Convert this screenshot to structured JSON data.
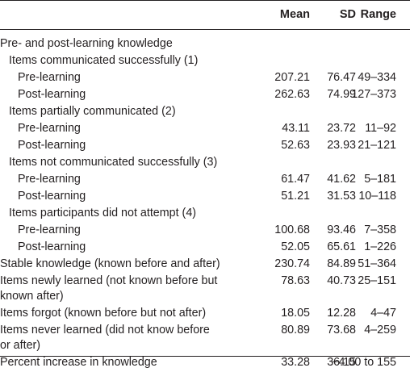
{
  "headers": {
    "mean": "Mean",
    "sd": "SD",
    "range": "Range"
  },
  "rows": [
    {
      "label": "Pre- and post-learning knowledge",
      "level": 0,
      "mean": "",
      "sd": "",
      "range": ""
    },
    {
      "label": "Items communicated successfully (1)",
      "level": 1,
      "mean": "",
      "sd": "",
      "range": ""
    },
    {
      "label": "Pre-learning",
      "level": 2,
      "mean": "207.21",
      "sd": "76.47",
      "range": "49–334"
    },
    {
      "label": "Post-learning",
      "level": 2,
      "mean": "262.63",
      "sd": "74.99",
      "range": "127–373"
    },
    {
      "label": "Items partially communicated (2)",
      "level": 1,
      "mean": "",
      "sd": "",
      "range": ""
    },
    {
      "label": "Pre-learning",
      "level": 2,
      "mean": "43.11",
      "sd": "23.72",
      "range": "11–92"
    },
    {
      "label": "Post-learning",
      "level": 2,
      "mean": "52.63",
      "sd": "23.93",
      "range": "21–121"
    },
    {
      "label": "Items not communicated successfully (3)",
      "level": 1,
      "mean": "",
      "sd": "",
      "range": ""
    },
    {
      "label": "Pre-learning",
      "level": 2,
      "mean": "61.47",
      "sd": "41.62",
      "range": "5–181"
    },
    {
      "label": "Post-learning",
      "level": 2,
      "mean": "51.21",
      "sd": "31.53",
      "range": "10–118"
    },
    {
      "label": "Items participants did not attempt (4)",
      "level": 1,
      "mean": "",
      "sd": "",
      "range": ""
    },
    {
      "label": "Pre-learning",
      "level": 2,
      "mean": "100.68",
      "sd": "93.46",
      "range": "7–358"
    },
    {
      "label": "Post-learning",
      "level": 2,
      "mean": "52.05",
      "sd": "65.61",
      "range": "1–226"
    },
    {
      "label": "Stable knowledge (known before and after)",
      "level": 0,
      "mean": "230.74",
      "sd": "84.89",
      "range": "51–364"
    },
    {
      "label": "Items newly learned (not known before but known after)",
      "level": 0,
      "mean": "78.63",
      "sd": "40.73",
      "range": "25–151",
      "wrap": true
    },
    {
      "label": "Items forgot (known before but not after)",
      "level": 0,
      "mean": "18.05",
      "sd": "12.28",
      "range": "4–47"
    },
    {
      "label": "Items never learned (did not know before or after)",
      "level": 0,
      "mean": "80.89",
      "sd": "73.68",
      "range": "4–259",
      "wrap": true
    },
    {
      "label": "Percent increase in knowledge",
      "level": 0,
      "mean": "33.28",
      "sd": "36.15",
      "range": "−4.00 to 155"
    }
  ]
}
